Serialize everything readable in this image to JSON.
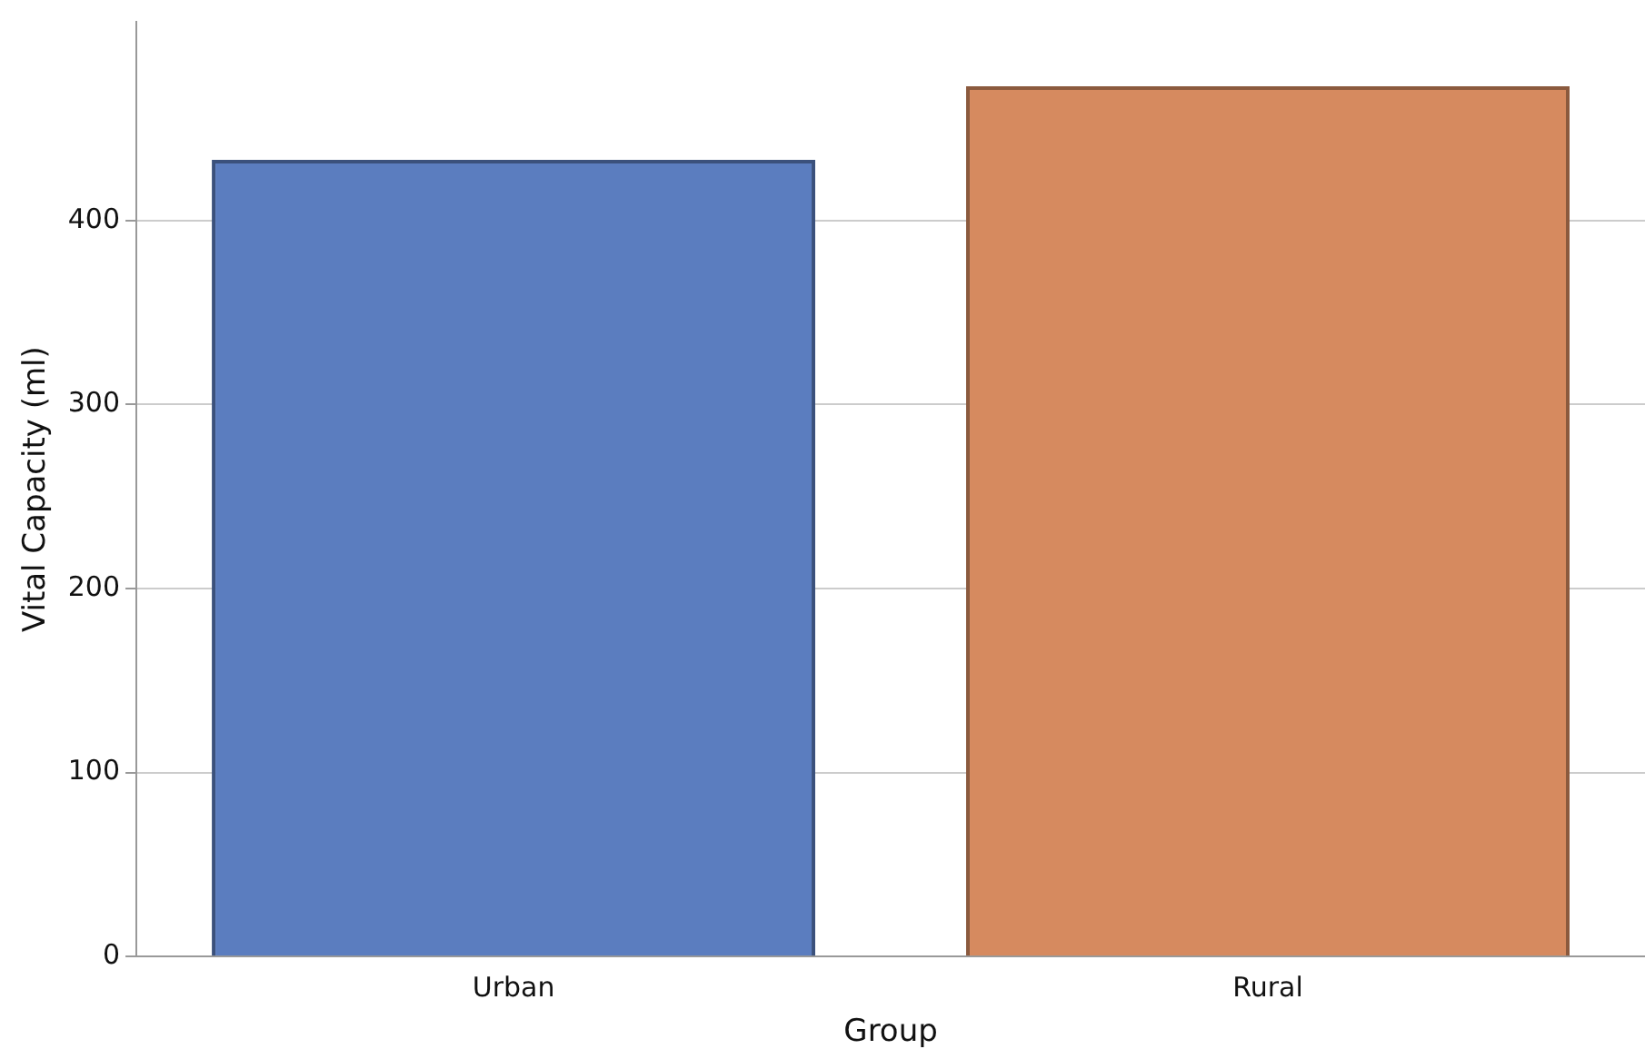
{
  "chart_data": {
    "type": "bar",
    "xlabel": "Group",
    "ylabel": "Vital Capacity (ml)",
    "categories": [
      "Urban",
      "Rural"
    ],
    "values": [
      433,
      473
    ],
    "colors": [
      "#5b7dbf",
      "#d68a5f"
    ],
    "ylim": [
      0,
      508
    ],
    "yticks": [
      0,
      100,
      200,
      300,
      400
    ],
    "grid": "y",
    "legend": false
  }
}
